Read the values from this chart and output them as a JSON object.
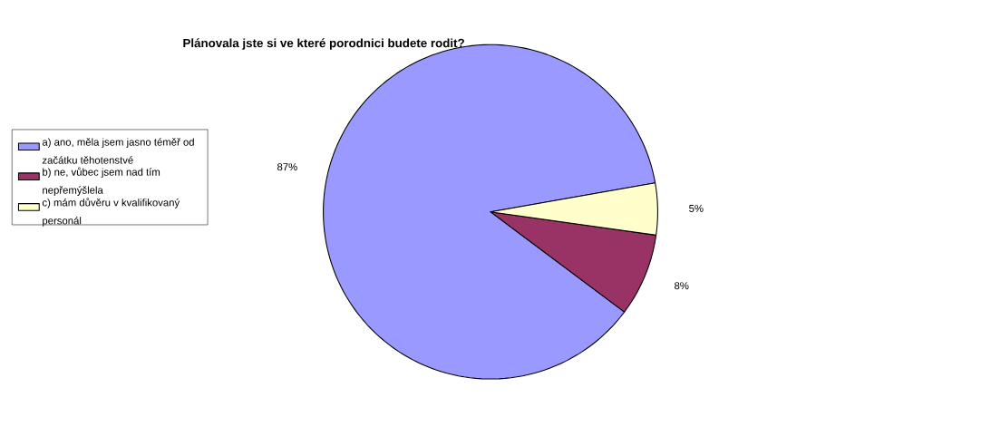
{
  "chart_data": {
    "type": "pie",
    "title": "Plánovala jste si ve které porodnici budete rodit?",
    "categories": [
      "a) ano, měla jsem jasno téměř od začátku těhotenstvé",
      "b) ne, vůbec jsem nad tím nepřemýšlela",
      "c) mám důvěru v kvalifikovaný personál"
    ],
    "values": [
      87,
      8,
      5
    ],
    "colors": [
      "#9999ff",
      "#993366",
      "#ffffcc"
    ],
    "value_labels": [
      "87%",
      "8%",
      "5%"
    ],
    "legend": "left"
  }
}
